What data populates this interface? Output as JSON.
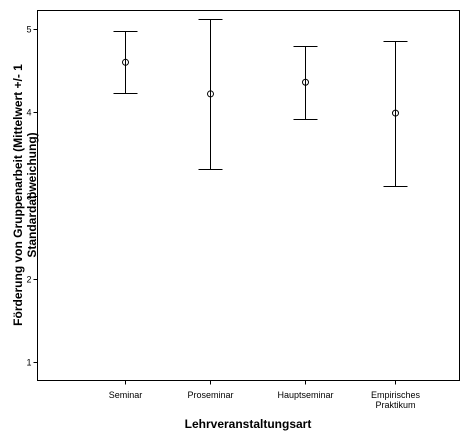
{
  "chart_data": {
    "type": "errorbar",
    "xlabel": "Lehrveranstaltungsart",
    "ylabel": "Förderung von Gruppenarbeit (Mittelwert +/- 1 Standardabweichung)",
    "ylabel_lines": [
      "Förderung von Gruppenarbeit (Mittelwert +/- 1",
      "Standardabweichung)"
    ],
    "ylim": [
      0.8,
      5.2
    ],
    "yticks": [
      "1",
      "2",
      "3",
      "4",
      "5"
    ],
    "grid": false,
    "categories": [
      {
        "label_lines": [
          "Seminar"
        ],
        "mean": 4.6,
        "lower": 4.23,
        "upper": 4.97
      },
      {
        "label_lines": [
          "Proseminar"
        ],
        "mean": 4.22,
        "lower": 3.32,
        "upper": 5.12
      },
      {
        "label_lines": [
          "Hauptseminar"
        ],
        "mean": 4.36,
        "lower": 3.92,
        "upper": 4.8
      },
      {
        "label_lines": [
          "Empirisches",
          "Praktikum"
        ],
        "mean": 3.99,
        "lower": 3.12,
        "upper": 4.85
      }
    ]
  }
}
